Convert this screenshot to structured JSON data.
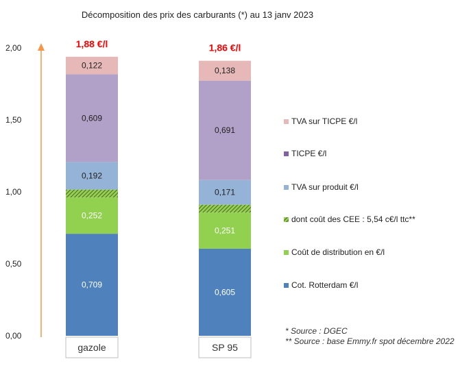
{
  "chart_data": {
    "type": "bar",
    "stacked": true,
    "title": "Décomposition des prix des carburants (*) au 13 janv 2023",
    "categories": [
      "gazole",
      "SP 95"
    ],
    "totals_labels": [
      "1,88 €/l",
      "1,86 €/l"
    ],
    "ylim": [
      0,
      2.0
    ],
    "yticks": [
      {
        "v": 0.0,
        "label": "0,00"
      },
      {
        "v": 0.5,
        "label": "0,50"
      },
      {
        "v": 1.0,
        "label": "1,00"
      },
      {
        "v": 1.5,
        "label": "1,50"
      },
      {
        "v": 2.0,
        "label": "2,00"
      }
    ],
    "series": [
      {
        "name": "Cot. Rotterdam €/l",
        "color": "#4f81bd",
        "label_color": "#ffffff",
        "values": [
          0.709,
          0.605
        ],
        "labels": [
          "0,709",
          "0,605"
        ]
      },
      {
        "name": "Coût de distribution en €/l",
        "color": "#92d050",
        "label_color": "#ffffff",
        "values": [
          0.252,
          0.251
        ],
        "labels": [
          "0,252",
          "0,251"
        ]
      },
      {
        "name": "dont coût des CEE : 5,54 c€/l ttc**",
        "color": "#77933c",
        "pattern": "hatch",
        "values": [
          0.055,
          0.055
        ],
        "labels": [
          "",
          ""
        ]
      },
      {
        "name": "TVA sur produit €/l",
        "color": "#95b3d7",
        "label_color": "#222222",
        "values": [
          0.192,
          0.171
        ],
        "labels": [
          "0,192",
          "0,171"
        ]
      },
      {
        "name": "TICPE €/l",
        "color": "#b1a0c7",
        "label_color": "#222222",
        "values": [
          0.609,
          0.691
        ],
        "labels": [
          "0,609",
          "0,691"
        ]
      },
      {
        "name": "TVA sur TICPE €/l",
        "color": "#e6b9b8",
        "label_color": "#222222",
        "values": [
          0.122,
          0.138
        ],
        "labels": [
          "0,122",
          "0,138"
        ]
      }
    ],
    "legend_position": "right",
    "arrow_color": "#f79646",
    "total_label_color": "#ff0000",
    "notes": [
      "* Source : DGEC",
      "** Source : base Emmy.fr spot décembre 2022"
    ]
  }
}
